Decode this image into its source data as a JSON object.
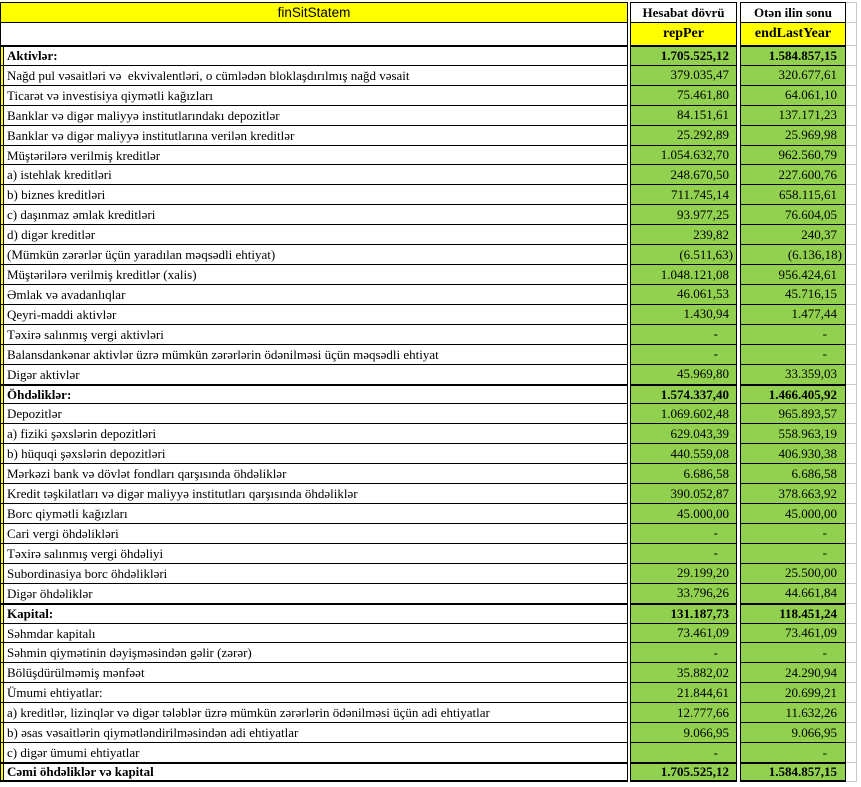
{
  "table": {
    "title": "finSitStatem",
    "columns": {
      "period_label": "Hesabat dövrü",
      "lastyear_label": "Otən ilin sonu",
      "period_code": "repPer",
      "lastyear_code": "endLastYear"
    },
    "rows": [
      {
        "label": "Aktivlər:",
        "rep": "1.705.525,12",
        "end": "1.584.857,15",
        "bold": true,
        "section": true
      },
      {
        "label": "Nağd pul vəsaitləri və  ekvivalentləri, o cümlədən bloklaşdırılmış nağd vəsait",
        "rep": "379.035,47",
        "end": "320.677,61",
        "bold": false,
        "section": false
      },
      {
        "label": "Ticarət və investisiya qiymətli kağızları",
        "rep": "75.461,80",
        "end": "64.061,10",
        "bold": false,
        "section": false
      },
      {
        "label": "Banklar və digər maliyyə institutlarındakı depozitlər",
        "rep": "84.151,61",
        "end": "137.171,23",
        "bold": false,
        "section": false
      },
      {
        "label": "Banklar və digər maliyyə institutlarına verilən kreditlər",
        "rep": "25.292,89",
        "end": "25.969,98",
        "bold": false,
        "section": false
      },
      {
        "label": "Müştərilərə verilmiş kreditlər",
        "rep": "1.054.632,70",
        "end": "962.560,79",
        "bold": false,
        "section": false
      },
      {
        "label": "a) istehlak kreditləri",
        "rep": "248.670,50",
        "end": "227.600,76",
        "bold": false,
        "section": false
      },
      {
        "label": "b) biznes kreditləri",
        "rep": "711.745,14",
        "end": "658.115,61",
        "bold": false,
        "section": false
      },
      {
        "label": "c) daşınmaz əmlak kreditləri",
        "rep": "93.977,25",
        "end": "76.604,05",
        "bold": false,
        "section": false
      },
      {
        "label": "d) digər kreditlər",
        "rep": "239,82",
        "end": "240,37",
        "bold": false,
        "section": false
      },
      {
        "label": "(Mümkün zərərlər üçün yaradılan məqsədli ehtiyat)",
        "rep": "(6.511,63)",
        "end": "(6.136,18)",
        "bold": false,
        "section": false
      },
      {
        "label": "Müştərilərə verilmiş kreditlər (xalis)",
        "rep": "1.048.121,08",
        "end": "956.424,61",
        "bold": false,
        "section": false
      },
      {
        "label": "Əmlak və avadanlıqlar",
        "rep": "46.061,53",
        "end": "45.716,15",
        "bold": false,
        "section": false
      },
      {
        "label": "Qeyri-maddi aktivlər",
        "rep": "1.430,94",
        "end": "1.477,44",
        "bold": false,
        "section": false
      },
      {
        "label": "Təxirə salınmış vergi aktivləri",
        "rep": "-",
        "end": "-",
        "bold": false,
        "section": false
      },
      {
        "label": "Balansdankənar aktivlər üzrə mümkün zərərlərin ödənilməsi üçün məqsədli ehtiyat",
        "rep": "-",
        "end": "-",
        "bold": false,
        "section": false
      },
      {
        "label": "Digər aktivlər",
        "rep": "45.969,80",
        "end": "33.359,03",
        "bold": false,
        "section": false
      },
      {
        "label": "Öhdəliklər:",
        "rep": "1.574.337,40",
        "end": "1.466.405,92",
        "bold": true,
        "section": true
      },
      {
        "label": "Depozitlər",
        "rep": "1.069.602,48",
        "end": "965.893,57",
        "bold": false,
        "section": false
      },
      {
        "label": "a) fiziki şəxslərin depozitləri",
        "rep": "629.043,39",
        "end": "558.963,19",
        "bold": false,
        "section": false
      },
      {
        "label": "b) hüquqi şəxslərin depozitləri",
        "rep": "440.559,08",
        "end": "406.930,38",
        "bold": false,
        "section": false
      },
      {
        "label": "Mərkəzi bank və dövlət fondları qarşısında öhdəliklər",
        "rep": "6.686,58",
        "end": "6.686,58",
        "bold": false,
        "section": false
      },
      {
        "label": "Kredit təşkilatları və digər maliyyə institutları qarşısında öhdəliklər",
        "rep": "390.052,87",
        "end": "378.663,92",
        "bold": false,
        "section": false
      },
      {
        "label": "Borc qiymətli kağızları",
        "rep": "45.000,00",
        "end": "45.000,00",
        "bold": false,
        "section": false
      },
      {
        "label": "Cari vergi öhdəlikləri",
        "rep": "-",
        "end": "-",
        "bold": false,
        "section": false
      },
      {
        "label": "Təxirə salınmış vergi öhdəliyi",
        "rep": "-",
        "end": "-",
        "bold": false,
        "section": false
      },
      {
        "label": "Subordinasiya borc öhdəlikləri",
        "rep": "29.199,20",
        "end": "25.500,00",
        "bold": false,
        "section": false
      },
      {
        "label": "Digər öhdəliklər",
        "rep": "33.796,26",
        "end": "44.661,84",
        "bold": false,
        "section": false
      },
      {
        "label": "Kapital:",
        "rep": "131.187,73",
        "end": "118.451,24",
        "bold": true,
        "section": true
      },
      {
        "label": "Səhmdar kapitalı",
        "rep": "73.461,09",
        "end": "73.461,09",
        "bold": false,
        "section": false
      },
      {
        "label": "Səhmin qiymətinin dəyişməsindən gəlir (zərər)",
        "rep": "-",
        "end": "-",
        "bold": false,
        "section": false
      },
      {
        "label": "Bölüşdürülməmiş mənfəət",
        "rep": "35.882,02",
        "end": "24.290,94",
        "bold": false,
        "section": false
      },
      {
        "label": "Ümumi ehtiyatlar:",
        "rep": "21.844,61",
        "end": "20.699,21",
        "bold": false,
        "section": false
      },
      {
        "label": "a) kreditlər, lizinqlər və digər tələblər üzrə mümkün zərərlərin ödənilməsi üçün adi ehtiyatlar",
        "rep": "12.777,66",
        "end": "11.632,26",
        "bold": false,
        "section": false
      },
      {
        "label": "b) əsas vəsaitlərin qiymətləndirilməsindən adi ehtiyatlar",
        "rep": "9.066,95",
        "end": "9.066,95",
        "bold": false,
        "section": false
      },
      {
        "label": "c) digər ümumi ehtiyatlar",
        "rep": "-",
        "end": "-",
        "bold": false,
        "section": false
      },
      {
        "label": "Cəmi öhdəliklər və kapital",
        "rep": "1.705.525,12",
        "end": "1.584.857,15",
        "bold": true,
        "section": true
      }
    ]
  },
  "colors": {
    "header_yellow": "#FFFF00",
    "cell_green": "#92D050",
    "border_black": "#000000",
    "gridline_gray": "#C9C9C9"
  }
}
